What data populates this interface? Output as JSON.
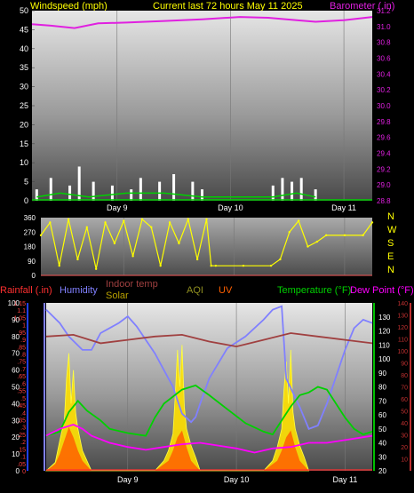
{
  "header": {
    "left_label": "Windspeed (mph)",
    "center_label": "Current last 72 hours May 11 2025",
    "right_label": "Barometer (.in)"
  },
  "colors": {
    "header_text": "#ffff00",
    "windspeed": "#ffffff",
    "windgust": "#00d000",
    "barometer": "#e020e0",
    "direction": "#ffff00",
    "rainfall": "#ff3030",
    "humidity": "#8080ff",
    "indoor_temp": "#a04040",
    "solar": "#b8a000",
    "aqi": "#909020",
    "uv": "#ff6000",
    "temperature": "#00d000",
    "dew_point": "#ff00ff",
    "rain_axis": "#2040ff",
    "temp_axis": "#00c000",
    "indoor_axis": "#c03030"
  },
  "legend2": {
    "rainfall": "Rainfall (.in)",
    "humidity": "Humidity",
    "indoor_temp": "Indoor temp",
    "solar": "Solar",
    "aqi": "AQI",
    "uv": "UV",
    "temperature": "Temperature (°F)",
    "dew_point": "Dew Point (°F)"
  },
  "chart_data": [
    {
      "type": "line",
      "name": "wind-and-barometer",
      "x_ticks": [
        {
          "label": "Day 9",
          "hours": 18
        },
        {
          "label": "Day 10",
          "hours": 42
        },
        {
          "label": "Day 11",
          "hours": 66
        }
      ],
      "x_range_hours": [
        0,
        72
      ],
      "y_left": {
        "label": "Windspeed (mph)",
        "min": 0,
        "max": 50,
        "ticks": [
          0,
          5,
          10,
          15,
          20,
          25,
          30,
          35,
          40,
          45,
          50
        ]
      },
      "y_right": {
        "label": "Barometer (.in)",
        "min": 28.8,
        "max": 31.2,
        "ticks": [
          28.8,
          29.0,
          29.2,
          29.4,
          29.6,
          29.8,
          30.0,
          30.2,
          30.4,
          30.6,
          30.8,
          31.0,
          31.2
        ]
      },
      "series": [
        {
          "name": "Barometer",
          "axis": "right",
          "x": [
            0,
            4,
            9,
            14,
            20,
            28,
            36,
            44,
            50,
            56,
            60,
            66,
            72
          ],
          "y": [
            31.03,
            31.01,
            30.98,
            31.04,
            31.05,
            31.07,
            31.09,
            31.12,
            31.11,
            31.08,
            31.06,
            31.08,
            31.12
          ]
        },
        {
          "name": "Windspeed",
          "axis": "left",
          "x": [
            1,
            4,
            8,
            10,
            13,
            17,
            21,
            23,
            27,
            30,
            34,
            36,
            51,
            53,
            55,
            57,
            60
          ],
          "y": [
            3,
            6,
            4,
            9,
            5,
            4,
            3,
            6,
            5,
            7,
            5,
            3,
            4,
            6,
            5,
            6,
            3
          ]
        },
        {
          "name": "Wind gust",
          "axis": "left",
          "x": [
            1,
            6,
            12,
            20,
            28,
            36,
            51,
            56,
            60
          ],
          "y": [
            1,
            2,
            1,
            2,
            2,
            1,
            1,
            2,
            1
          ]
        }
      ]
    },
    {
      "type": "scatter",
      "name": "wind-direction",
      "y_ticks": [
        0,
        90,
        180,
        270,
        360
      ],
      "y_range": [
        0,
        360
      ],
      "compass_labels": [
        "N",
        "W",
        "S",
        "E",
        "N"
      ],
      "series": [
        {
          "name": "Direction",
          "x": [
            0,
            2,
            4,
            6,
            8,
            10,
            12,
            14,
            16,
            18,
            20,
            22,
            24,
            26,
            28,
            30,
            32,
            34,
            36,
            37,
            38,
            44,
            50,
            52,
            54,
            56,
            58,
            60,
            62,
            66,
            70,
            72
          ],
          "y": [
            250,
            330,
            60,
            350,
            100,
            300,
            40,
            330,
            200,
            340,
            120,
            350,
            300,
            60,
            330,
            200,
            350,
            100,
            350,
            60,
            60,
            60,
            60,
            100,
            270,
            340,
            180,
            210,
            250,
            250,
            250,
            330
          ]
        }
      ]
    },
    {
      "type": "line",
      "name": "weather-multi",
      "x_ticks": [
        {
          "label": "Day 9",
          "hours": 18
        },
        {
          "label": "Day 10",
          "hours": 42
        },
        {
          "label": "Day 11",
          "hours": 66
        }
      ],
      "x_range_hours": [
        0,
        72
      ],
      "y_left_outer": {
        "label": "Rainfall (.in)",
        "min": 0,
        "max": 1.15,
        "ticks": [
          0,
          0.05,
          0.1,
          0.15,
          0.2,
          0.25,
          0.3,
          0.35,
          0.4,
          0.45,
          0.5,
          0.55,
          0.6,
          0.65,
          0.7,
          0.75,
          0.8,
          0.85,
          0.9,
          0.95,
          1,
          1.05,
          1.1,
          1.15
        ]
      },
      "y_left_inner": {
        "label": "Humidity",
        "min": 0,
        "max": 100,
        "ticks": [
          0,
          10,
          20,
          30,
          40,
          50,
          60,
          70,
          80,
          90,
          100
        ]
      },
      "y_right_inner": {
        "label": "Temperature (°F)",
        "min": 20,
        "max": 140,
        "ticks": [
          20,
          30,
          40,
          50,
          60,
          70,
          80,
          90,
          100,
          110,
          120,
          130
        ]
      },
      "y_right_outer": {
        "label": "Indoor temp",
        "min": 0,
        "max": 140,
        "ticks": [
          10,
          20,
          30,
          40,
          50,
          60,
          70,
          80,
          90,
          100,
          110,
          120,
          130,
          140
        ]
      },
      "series": [
        {
          "name": "Humidity",
          "axis": "left_inner",
          "x": [
            0,
            3,
            5,
            8,
            10,
            12,
            16,
            18,
            20,
            24,
            28,
            30,
            32,
            33,
            34,
            36,
            40,
            44,
            48,
            50,
            52,
            53,
            56,
            58,
            60,
            62,
            64,
            66,
            68,
            70,
            72
          ],
          "y": [
            96,
            88,
            80,
            72,
            72,
            82,
            88,
            92,
            86,
            70,
            50,
            34,
            29,
            32,
            40,
            55,
            73,
            80,
            90,
            96,
            98,
            55,
            38,
            25,
            27,
            40,
            56,
            72,
            85,
            90,
            88
          ]
        },
        {
          "name": "Indoor temp",
          "axis": "left_inner",
          "x": [
            0,
            6,
            12,
            18,
            24,
            30,
            36,
            42,
            48,
            54,
            60,
            66,
            72
          ],
          "y": [
            80,
            81,
            76,
            78,
            80,
            81,
            77,
            74,
            78,
            82,
            80,
            78,
            76
          ]
        },
        {
          "name": "Temperature (°F)",
          "axis": "right_inner",
          "x": [
            0,
            3,
            5,
            7,
            9,
            12,
            14,
            18,
            22,
            24,
            26,
            30,
            33,
            36,
            40,
            44,
            48,
            50,
            52,
            54,
            56,
            58,
            60,
            62,
            64,
            66,
            68,
            70,
            72
          ],
          "y": [
            45,
            48,
            62,
            70,
            63,
            56,
            50,
            47,
            45,
            58,
            68,
            78,
            81,
            74,
            64,
            54,
            48,
            46,
            56,
            66,
            74,
            76,
            80,
            78,
            68,
            58,
            50,
            46,
            48
          ]
        },
        {
          "name": "Dew Point (°F)",
          "axis": "right_inner",
          "x": [
            0,
            3,
            6,
            8,
            10,
            14,
            18,
            22,
            26,
            30,
            34,
            38,
            42,
            46,
            50,
            54,
            58,
            62,
            66,
            70,
            72
          ],
          "y": [
            45,
            50,
            53,
            50,
            45,
            40,
            37,
            35,
            37,
            39,
            40,
            38,
            36,
            33,
            36,
            37,
            40,
            40,
            42,
            44,
            45
          ]
        },
        {
          "name": "Solar",
          "axis": "left_inner",
          "x": [
            0,
            2,
            3,
            4,
            4.5,
            5,
            5.5,
            6,
            6.5,
            7,
            8,
            9,
            10,
            24,
            26,
            27,
            28,
            28.5,
            29,
            29.5,
            30,
            30.5,
            31,
            32,
            33,
            34,
            48,
            50,
            51,
            52,
            52.5,
            53,
            53.5,
            54,
            54.5,
            55,
            56,
            57,
            58
          ],
          "y": [
            0,
            5,
            18,
            30,
            55,
            70,
            40,
            60,
            35,
            25,
            12,
            6,
            0,
            0,
            6,
            12,
            22,
            45,
            72,
            50,
            75,
            38,
            25,
            15,
            8,
            0,
            0,
            6,
            14,
            25,
            48,
            65,
            40,
            72,
            35,
            25,
            15,
            8,
            0
          ]
        },
        {
          "name": "UV",
          "axis": "left_inner",
          "x": [
            0,
            2,
            3,
            4,
            5,
            6,
            7,
            8,
            10,
            24,
            27,
            28,
            29,
            30,
            31,
            32,
            34,
            48,
            51,
            52,
            53,
            54,
            55,
            56,
            58
          ],
          "y": [
            0,
            4,
            10,
            18,
            26,
            20,
            12,
            6,
            0,
            0,
            6,
            12,
            20,
            24,
            14,
            6,
            0,
            0,
            6,
            12,
            20,
            24,
            14,
            6,
            0
          ]
        }
      ]
    }
  ]
}
